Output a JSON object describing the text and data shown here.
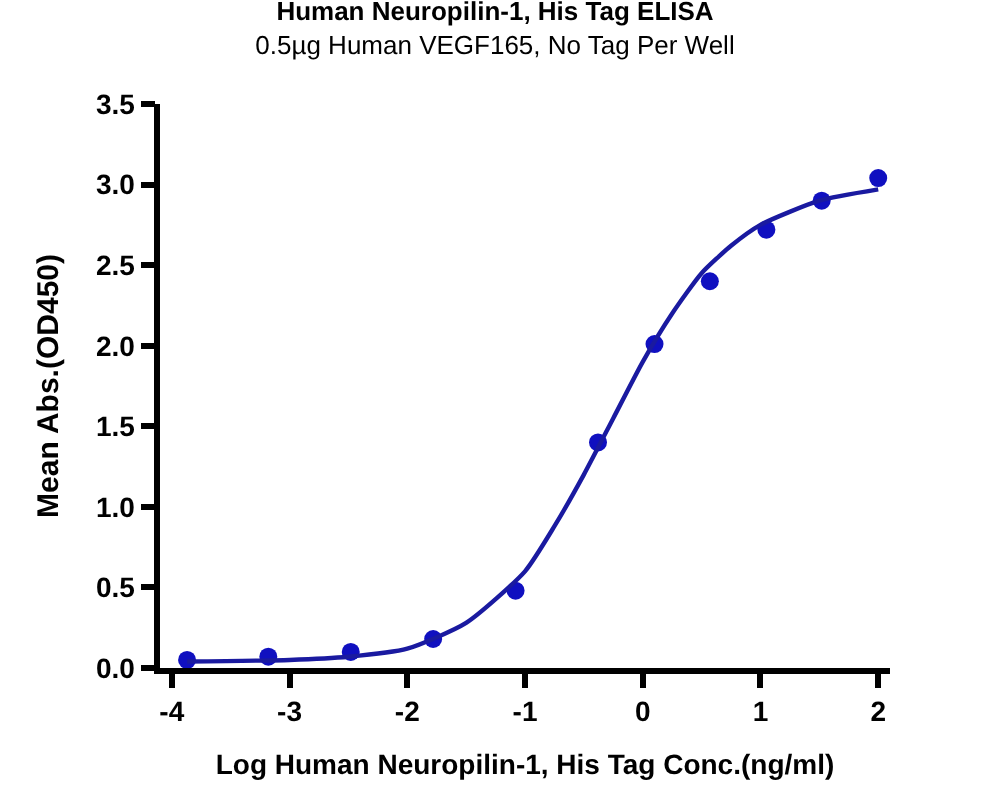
{
  "chart_data": {
    "type": "scatter",
    "title": "Human Neuropilin-1, His Tag ELISA",
    "subtitle": "0.5µg Human VEGF165, No Tag Per Well",
    "xlabel": "Log Human Neuropilin-1, His Tag Conc.(ng/ml)",
    "ylabel": "Mean Abs.(OD450)",
    "series": [
      {
        "color": "#1010c0",
        "marker": "circle",
        "x": [
          -3.87,
          -3.18,
          -2.48,
          -1.78,
          -1.08,
          -0.38,
          0.1,
          0.57,
          1.05,
          1.52,
          2.0
        ],
        "values": [
          0.05,
          0.07,
          0.1,
          0.18,
          0.48,
          1.4,
          2.01,
          2.4,
          2.72,
          2.9,
          3.04
        ]
      },
      {
        "type": "line",
        "color": "#1a1aa0",
        "marker": "none",
        "x": [
          -3.87,
          -3,
          -2.5,
          -2,
          -1.5,
          -1,
          -0.75,
          -0.5,
          -0.25,
          0,
          0.25,
          0.5,
          0.75,
          1,
          1.5,
          2
        ],
        "values": [
          0.04,
          0.05,
          0.07,
          0.12,
          0.28,
          0.6,
          0.88,
          1.2,
          1.55,
          1.9,
          2.2,
          2.45,
          2.62,
          2.75,
          2.9,
          2.97
        ]
      }
    ],
    "xlim": [
      -4.1,
      2.1
    ],
    "xticks": [
      -4,
      -3,
      -2,
      -1,
      0,
      1,
      2
    ],
    "ylim": [
      0,
      3.5
    ],
    "yticks": [
      {
        "value": 0,
        "label": "0.0"
      },
      {
        "value": 0.5,
        "label": "0.5"
      },
      {
        "value": 1,
        "label": "1.0"
      },
      {
        "value": 1.5,
        "label": "1.5"
      },
      {
        "value": 2,
        "label": "2.0"
      },
      {
        "value": 2.5,
        "label": "2.5"
      },
      {
        "value": 3,
        "label": "3.0"
      },
      {
        "value": 3.5,
        "label": "3.5"
      }
    ]
  }
}
